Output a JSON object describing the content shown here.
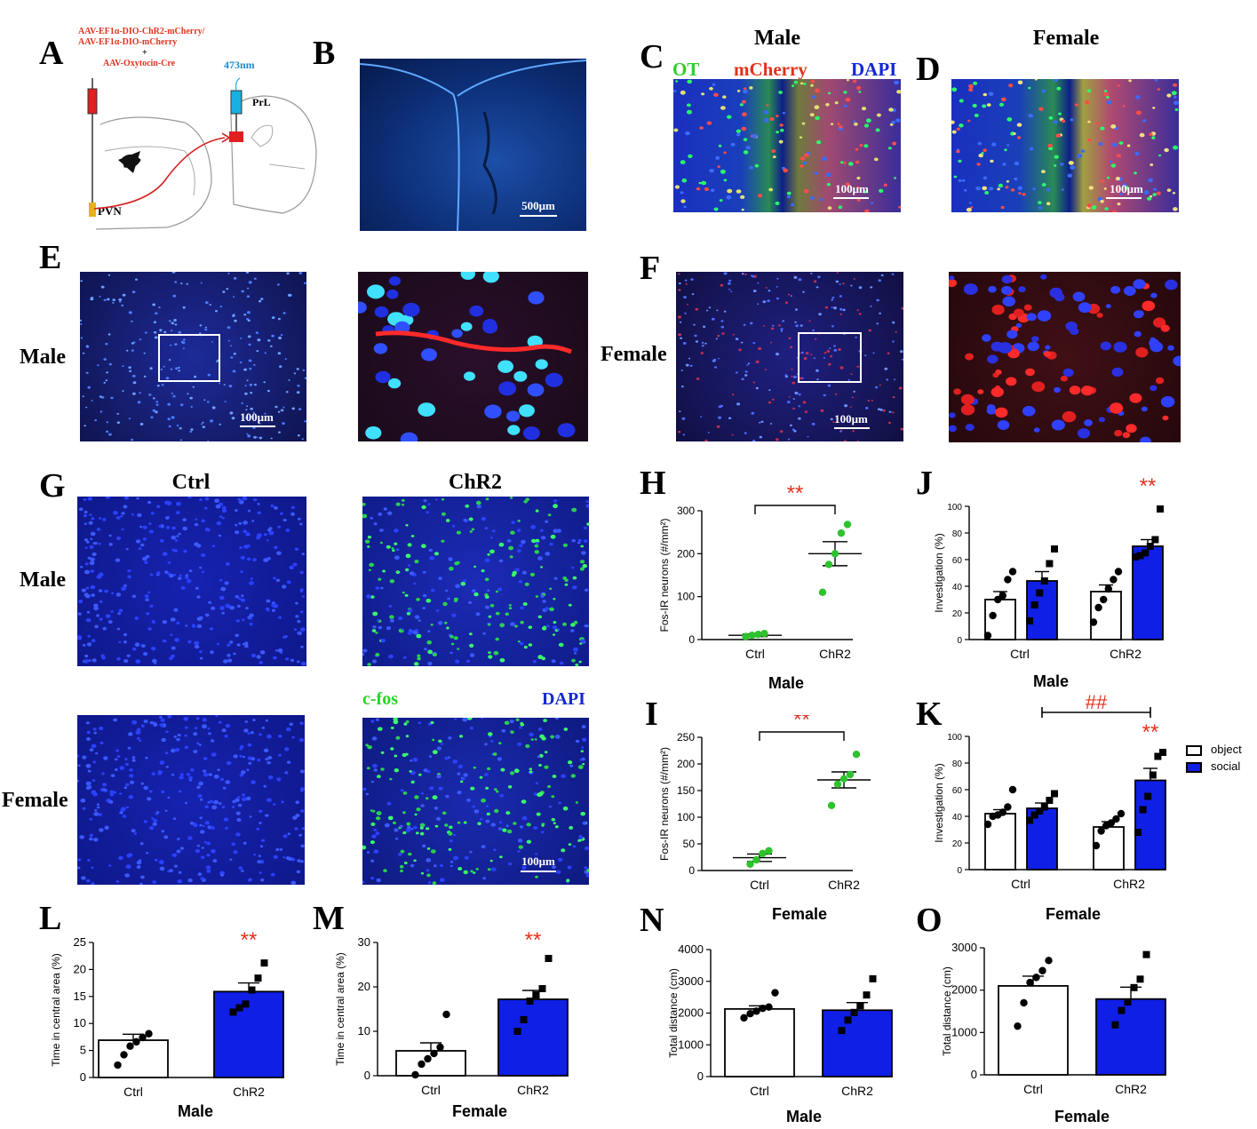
{
  "colors": {
    "ctrl_bar": "#ffffff",
    "chr2_bar": "#0f1fe6",
    "sig": "#e0331e",
    "green_dot": "#2ec22e",
    "dapi": "#1428d2"
  },
  "panel_labels": {
    "A": "A",
    "B": "B",
    "C": "C",
    "D": "D",
    "E": "E",
    "F": "F",
    "G": "G",
    "H": "H",
    "I": "I",
    "J": "J",
    "K": "K",
    "L": "L",
    "M": "M",
    "N": "N",
    "O": "O"
  },
  "panelA": {
    "virus1": "AAV-EF1α-DIO-ChR2-mCherry/",
    "virus2": "AAV-EF1α-DIO-mCherry",
    "plus": "+",
    "virus3": "AAV-Oxytocin-Cre",
    "laser": "473nm",
    "target": "PrL",
    "source": "PVN"
  },
  "panelB": {
    "scale": "500μm"
  },
  "panelCD": {
    "male": "Male",
    "female": "Female",
    "ot": "OT",
    "mcherry": "mCherry",
    "dapi": "DAPI",
    "scale": "100μm"
  },
  "panelEF": {
    "male": "Male",
    "female": "Female",
    "scale": "100μm"
  },
  "panelG": {
    "ctrl": "Ctrl",
    "chr2": "ChR2",
    "male": "Male",
    "female": "Female",
    "cfos": "c-fos",
    "dapi": "DAPI",
    "scale": "100μm"
  },
  "legend": {
    "object": "object",
    "social": "social"
  },
  "chart_data": [
    {
      "panel": "H",
      "type": "scatter",
      "title": "",
      "subtitle": "Male",
      "categories": [
        "Ctrl",
        "ChR2"
      ],
      "ylabel": "Fos-IR  neurons (#/mm²)",
      "ylim": [
        0,
        300
      ],
      "yticks": [
        0,
        100,
        200,
        300
      ],
      "means": [
        10,
        200
      ],
      "sem": [
        3,
        28
      ],
      "points": [
        [
          7,
          10,
          12,
          14
        ],
        [
          110,
          175,
          200,
          248,
          268
        ]
      ],
      "sig": "**"
    },
    {
      "panel": "I",
      "type": "scatter",
      "title": "",
      "subtitle": "",
      "categories": [
        "Ctrl",
        "ChR2"
      ],
      "ylabel": "Fos-IR  neurons (#/mm²)",
      "ylim": [
        0,
        250
      ],
      "yticks": [
        0,
        50,
        100,
        150,
        200,
        250
      ],
      "means": [
        24,
        170
      ],
      "sem": [
        7,
        15
      ],
      "points": [
        [
          12,
          20,
          32,
          37
        ],
        [
          122,
          162,
          172,
          180,
          218
        ]
      ],
      "sig": "**"
    },
    {
      "panel": "J",
      "type": "bar",
      "title": "",
      "subtitle": "Male",
      "categories": [
        "Ctrl",
        "ChR2"
      ],
      "ylabel": "Investigation (%)",
      "ylim": [
        0,
        100
      ],
      "yticks": [
        0,
        20,
        40,
        60,
        80,
        100
      ],
      "series": [
        {
          "name": "object",
          "values": [
            30,
            36
          ],
          "sem": [
            6,
            5
          ],
          "points": [
            [
              3,
              18,
              30,
              33,
              45,
              51
            ],
            [
              13,
              24,
              30,
              38,
              45,
              51
            ]
          ]
        },
        {
          "name": "social",
          "values": [
            44,
            70
          ],
          "sem": [
            7,
            5
          ],
          "points": [
            [
              14,
              26,
              35,
              44,
              57,
              68
            ],
            [
              62,
              63,
              65,
              70,
              75,
              98
            ]
          ]
        }
      ],
      "sig": "**"
    },
    {
      "panel": "K",
      "type": "bar",
      "title": "",
      "subtitle": "",
      "categories": [
        "Ctrl",
        "ChR2"
      ],
      "ylabel": "Investigation (%)",
      "ylim": [
        0,
        100
      ],
      "yticks": [
        0,
        20,
        40,
        60,
        80,
        100
      ],
      "series": [
        {
          "name": "object",
          "values": [
            42,
            32
          ],
          "sem": [
            3,
            4
          ],
          "points": [
            [
              34,
              40,
              41,
              43,
              47,
              60
            ],
            [
              18,
              29,
              33,
              35,
              38,
              42
            ]
          ]
        },
        {
          "name": "social",
          "values": [
            46,
            67
          ],
          "sem": [
            4,
            9
          ],
          "points": [
            [
              37,
              41,
              44,
              47,
              52,
              57
            ],
            [
              28,
              45,
              55,
              71,
              85,
              88
            ]
          ]
        }
      ],
      "sig": "**",
      "sig2": "##"
    },
    {
      "panel": "L",
      "type": "bar",
      "title": "",
      "subtitle": "Male",
      "categories": [
        "Ctrl",
        "ChR2"
      ],
      "ylabel": "Time in central area (%)",
      "ylim": [
        0,
        25
      ],
      "yticks": [
        0,
        5,
        10,
        15,
        20,
        25
      ],
      "values": [
        6.9,
        15.9
      ],
      "sem": [
        1.1,
        1.6
      ],
      "points": [
        [
          2.3,
          4.2,
          5.8,
          6.6,
          7.4,
          8.1
        ],
        [
          12.1,
          12.9,
          13.6,
          16.2,
          18.4,
          21.2
        ]
      ],
      "sig": "**"
    },
    {
      "panel": "M",
      "type": "bar",
      "title": "",
      "subtitle": "Female",
      "categories": [
        "Ctrl",
        "ChR2"
      ],
      "ylabel": "Time in central area (%)",
      "ylim": [
        0,
        30
      ],
      "yticks": [
        0,
        10,
        20,
        30
      ],
      "values": [
        5.6,
        17.2
      ],
      "sem": [
        1.8,
        2.0
      ],
      "points": [
        [
          0.2,
          2.6,
          3.8,
          5.0,
          6.4,
          13.8
        ],
        [
          10,
          12.6,
          16.8,
          18.2,
          19.6,
          26.4
        ]
      ],
      "sig": "**"
    },
    {
      "panel": "N",
      "type": "bar",
      "title": "Female",
      "subtitle": "Male",
      "categories": [
        "Ctrl",
        "ChR2"
      ],
      "ylabel": "Total distance (cm)",
      "ylim": [
        0,
        4000
      ],
      "yticks": [
        0,
        1000,
        2000,
        3000,
        4000
      ],
      "values": [
        2130,
        2090
      ],
      "sem": [
        100,
        240
      ],
      "points": [
        [
          1850,
          1980,
          2060,
          2150,
          2190,
          2640
        ],
        [
          1450,
          1780,
          2020,
          2230,
          2570,
          3080
        ]
      ]
    },
    {
      "panel": "O",
      "type": "bar",
      "title": "Female",
      "subtitle": "Female",
      "categories": [
        "Ctrl",
        "ChR2"
      ],
      "ylabel": "Total distance (cm)",
      "ylim": [
        0,
        3000
      ],
      "yticks": [
        0,
        1000,
        2000,
        3000
      ],
      "values": [
        2100,
        1790
      ],
      "sem": [
        230,
        280
      ],
      "points": [
        [
          1150,
          1700,
          2180,
          2300,
          2460,
          2700
        ],
        [
          1180,
          1520,
          1720,
          2060,
          2260,
          2840
        ]
      ]
    }
  ]
}
